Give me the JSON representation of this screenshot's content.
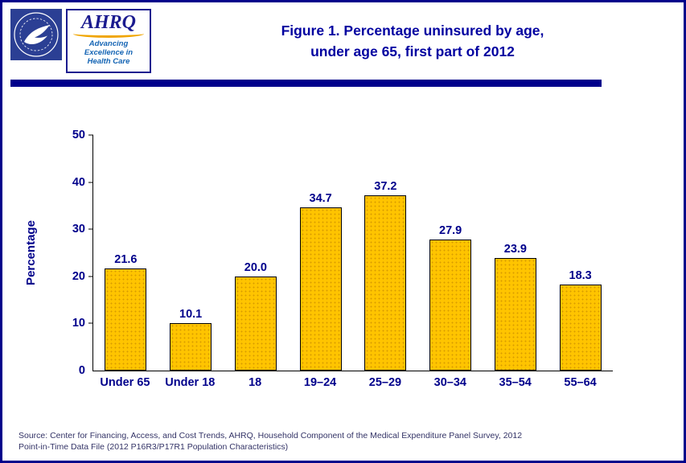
{
  "header": {
    "title_line1": "Figure 1. Percentage uninsured by age,",
    "title_line2": "under age 65, first part of 2012",
    "ahrq_word": "AHRQ",
    "tagline_line1": "Advancing",
    "tagline_line2": "Excellence in",
    "tagline_line3": "Health Care"
  },
  "chart_data": {
    "type": "bar",
    "title": "Figure 1. Percentage uninsured by age, under age 65, first part of 2012",
    "categories": [
      "Under 65",
      "Under 18",
      "18",
      "19–24",
      "25–29",
      "30–34",
      "35–54",
      "55–64"
    ],
    "values": [
      21.6,
      10.1,
      20.0,
      34.7,
      37.2,
      27.9,
      23.9,
      18.3
    ],
    "value_label_decimals": 1,
    "xlabel": "",
    "ylabel": "Percentage",
    "ylim": [
      0,
      50
    ],
    "yticks": [
      0,
      10,
      20,
      30,
      40,
      50
    ],
    "grid": false,
    "legend": false,
    "bar_color": "#FFC400",
    "bar_border_color": "#000000",
    "text_color": "#00008B"
  },
  "footer": {
    "source_line1": "Source: Center for Financing, Access, and Cost Trends, AHRQ, Household Component of the Medical Expenditure Panel Survey, 2012",
    "source_line2": "Point-in-Time Data File (2012 P16R3/P17R1 Population Characteristics)"
  },
  "colors": {
    "accent_navy": "#00008B",
    "title_blue": "#0000A0",
    "bar_gold": "#FFC400",
    "swoosh_gold": "#F0A500"
  }
}
